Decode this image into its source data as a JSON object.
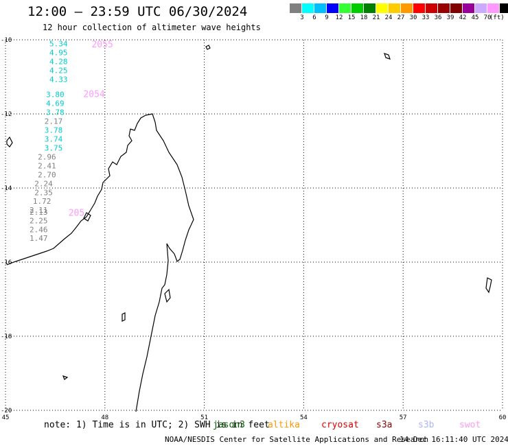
{
  "header": {
    "title": "12:00 – 23:59 UTC 06/30/2024",
    "subtitle": "12 hour collection of altimeter wave heights"
  },
  "colorbar": {
    "colors": [
      "#808080",
      "#00ffff",
      "#00bfff",
      "#0000ff",
      "#33ff33",
      "#00cc00",
      "#008000",
      "#ffff00",
      "#ffcc00",
      "#ff9900",
      "#ff0000",
      "#cc0000",
      "#990000",
      "#800000",
      "#990099",
      "#ccaaff",
      "#ff99ff",
      "#000000"
    ],
    "labels": [
      "3",
      "6",
      "9",
      "12",
      "15",
      "18",
      "21",
      "24",
      "27",
      "30",
      "33",
      "36",
      "39",
      "42",
      "45",
      "70"
    ],
    "units": "(ft)"
  },
  "map": {
    "lon_ticks": [
      "45",
      "48",
      "51",
      "54",
      "57",
      "60"
    ],
    "lat_ticks": [
      "-10",
      "-12",
      "-14",
      "-16",
      "-18",
      "-20"
    ],
    "lon_range": [
      45,
      60
    ],
    "lat_range": [
      -20,
      -10
    ],
    "grid_line_style": "dotted"
  },
  "tracks": [
    {
      "time_label": "2055",
      "label_color": "#ff99ff",
      "label_lon": 47.6,
      "label_lat": -10.2,
      "points": [
        {
          "lon": 46.6,
          "lat": -10.18,
          "swh": "5.34",
          "color": "#00cccc"
        },
        {
          "lon": 46.6,
          "lat": -10.42,
          "swh": "4.95",
          "color": "#00cccc"
        },
        {
          "lon": 46.6,
          "lat": -10.66,
          "swh": "4.28",
          "color": "#00cccc"
        },
        {
          "lon": 46.6,
          "lat": -10.9,
          "swh": "4.25",
          "color": "#00cccc"
        },
        {
          "lon": 46.6,
          "lat": -11.14,
          "swh": "4.33",
          "color": "#00cccc"
        }
      ]
    },
    {
      "time_label": "2054",
      "label_color": "#ff99ff",
      "label_lon": 47.35,
      "label_lat": -11.55,
      "points": [
        {
          "lon": 46.5,
          "lat": -11.55,
          "swh": "3.80",
          "color": "#00cccc"
        },
        {
          "lon": 46.5,
          "lat": -11.79,
          "swh": "4.69",
          "color": "#00cccc"
        },
        {
          "lon": 46.5,
          "lat": -12.03,
          "swh": "3.78",
          "color": "#00cccc"
        },
        {
          "lon": 46.45,
          "lat": -12.27,
          "swh": "2.17",
          "color": "#808080"
        },
        {
          "lon": 46.45,
          "lat": -12.51,
          "swh": "3.78",
          "color": "#00cccc"
        },
        {
          "lon": 46.45,
          "lat": -12.75,
          "swh": "3.74",
          "color": "#00cccc"
        },
        {
          "lon": 46.45,
          "lat": -12.99,
          "swh": "3.75",
          "color": "#00cccc"
        },
        {
          "lon": 46.25,
          "lat": -13.23,
          "swh": "2.96",
          "color": "#808080"
        },
        {
          "lon": 46.25,
          "lat": -13.47,
          "swh": "2.41",
          "color": "#808080"
        },
        {
          "lon": 46.25,
          "lat": -13.71,
          "swh": "2.70",
          "color": "#808080"
        },
        {
          "lon": 46.15,
          "lat": -13.95,
          "swh": "2.24",
          "color": "#808080"
        },
        {
          "lon": 46.15,
          "lat": -14.19,
          "swh": "2.35",
          "color": "#808080"
        },
        {
          "lon": 46.1,
          "lat": -14.43,
          "swh": "1.72",
          "color": "#808080"
        },
        {
          "lon": 46.0,
          "lat": -14.67,
          "swh": "2.11",
          "color": "#808080"
        },
        {
          "lon": 46.0,
          "lat": -14.72,
          "swh": "2.13",
          "color": "#808080"
        },
        {
          "lon": 46.0,
          "lat": -14.95,
          "swh": "2.25",
          "color": "#808080"
        },
        {
          "lon": 46.0,
          "lat": -15.19,
          "swh": "2.46",
          "color": "#808080"
        },
        {
          "lon": 46.0,
          "lat": -15.43,
          "swh": "1.47",
          "color": "#808080"
        }
      ]
    },
    {
      "time_label": "205",
      "label_color": "#ff99ff",
      "label_lon": 46.9,
      "label_lat": -14.75,
      "points": []
    }
  ],
  "note": {
    "prefix": "note: 1) Time is in UTC; 2) SWH is in feet",
    "satellites": [
      {
        "name": "jason3",
        "color": "#006400"
      },
      {
        "name": "altika",
        "color": "#ff9900"
      },
      {
        "name": "cryosat",
        "color": "#e00000"
      },
      {
        "name": "s3a",
        "color": "#8b0000"
      },
      {
        "name": "s3b",
        "color": "#aab4ff"
      },
      {
        "name": "swot",
        "color": "#ff99ee"
      }
    ]
  },
  "footer": {
    "credit": "NOAA/NESDIS Center for Satellite Applications and Research",
    "timestamp": "14 Dec 16:11:40 UTC 2024"
  }
}
